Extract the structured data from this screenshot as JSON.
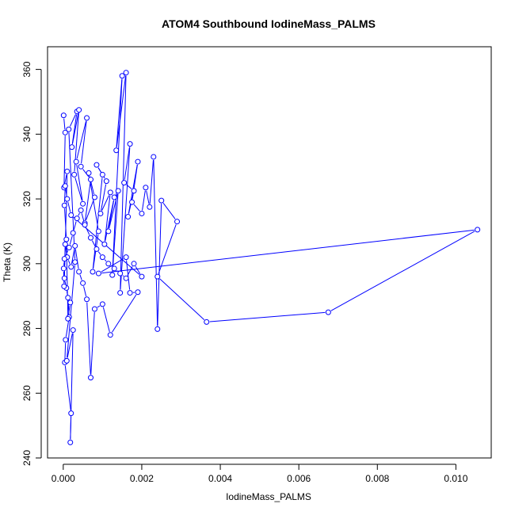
{
  "chart_data": {
    "type": "line",
    "title": "ATOM4 Southbound IodineMass_PALMS",
    "xlabel": "IodineMass_PALMS",
    "ylabel": "Theta (K)",
    "xlim": [
      -0.0004,
      0.0109
    ],
    "ylim": [
      240,
      367
    ],
    "x_ticks": [
      0.0,
      0.002,
      0.004,
      0.006,
      0.008,
      0.01
    ],
    "x_tick_labels": [
      "0.000",
      "0.002",
      "0.004",
      "0.006",
      "0.008",
      "0.010"
    ],
    "y_ticks": [
      240,
      260,
      280,
      300,
      320,
      340,
      360
    ],
    "y_tick_labels": [
      "240",
      "260",
      "280",
      "300",
      "320",
      "340",
      "360"
    ],
    "grid": false,
    "series_color": "#0000ff",
    "series": [
      {
        "x": [
          1e-05,
          5e-05,
          2e-05,
          0.0001,
          3e-05,
          8e-05,
          0.00012,
          0.00015,
          6e-05,
          4e-05,
          0.0002,
          0.00018,
          0.00025,
          9e-05,
          0.0003,
          0.00014,
          0.00035,
          0.00022,
          0.0004,
          0.00028,
          0.0005,
          0.00033,
          0.0006,
          0.00045,
          0.0007,
          0.00055,
          0.0008,
          0.00065,
          0.0009,
          0.00075,
          0.001,
          0.00085,
          0.0011,
          0.00095,
          0.0012,
          0.00105,
          0.0013,
          0.00115,
          0.0014,
          0.00125,
          0.0015,
          0.00135,
          0.0016,
          0.00145,
          0.0017,
          0.00155,
          0.0018,
          0.00165,
          0.0019,
          0.00175,
          0.002,
          0.0021,
          0.0022,
          0.0023,
          0.0024,
          0.0025,
          0.0029,
          0.0024,
          0.00365,
          0.00675,
          0.01055,
          0.0009,
          0.0016,
          0.0017,
          0.0019,
          0.0012,
          0.001,
          0.0008,
          0.0007,
          0.0006,
          0.0005,
          0.0004,
          0.0003,
          0.0002,
          0.0001,
          5e-05,
          2e-05,
          1e-05,
          3e-05,
          0.00015,
          0.00025,
          0.00035,
          0.00045,
          0.00055,
          0.0007,
          0.00085,
          0.001,
          0.00115,
          0.0013,
          0.00145,
          0.0016,
          0.0018,
          0.002,
          0.0002,
          0.0001,
          5e-05,
          3e-05,
          8e-05,
          0.00012,
          0.00018
        ],
        "y": [
          345.8,
          340.5,
          323.5,
          328.5,
          295.5,
          292.5,
          289.5,
          283.5,
          276.5,
          269.5,
          253.8,
          244.8,
          279.5,
          270.0,
          300.5,
          341.5,
          347.0,
          336.0,
          347.5,
          327.5,
          318.5,
          331.5,
          345.0,
          330.0,
          326.0,
          312.5,
          320.5,
          328.0,
          310.0,
          297.5,
          327.5,
          330.5,
          325.5,
          315.5,
          322.0,
          306.0,
          320.5,
          310.0,
          322.5,
          296.5,
          358.0,
          335.0,
          359.0,
          291.0,
          337.0,
          325.0,
          322.5,
          314.5,
          331.5,
          319.0,
          315.5,
          323.5,
          317.5,
          333.0,
          279.8,
          319.5,
          313.0,
          296.0,
          282.0,
          285.0,
          310.5,
          297.0,
          302.0,
          291.0,
          291.2,
          278.0,
          287.5,
          286.0,
          264.8,
          289.0,
          294.0,
          297.5,
          305.5,
          299.0,
          302.0,
          306.0,
          293.0,
          298.5,
          301.5,
          305.0,
          309.5,
          314.0,
          316.5,
          312.0,
          308.0,
          304.5,
          302.0,
          300.0,
          298.5,
          297.0,
          295.5,
          300.0,
          296.0,
          315.0,
          320.0,
          324.0,
          318.0,
          307.5,
          283.0,
          288.0
        ]
      }
    ]
  }
}
